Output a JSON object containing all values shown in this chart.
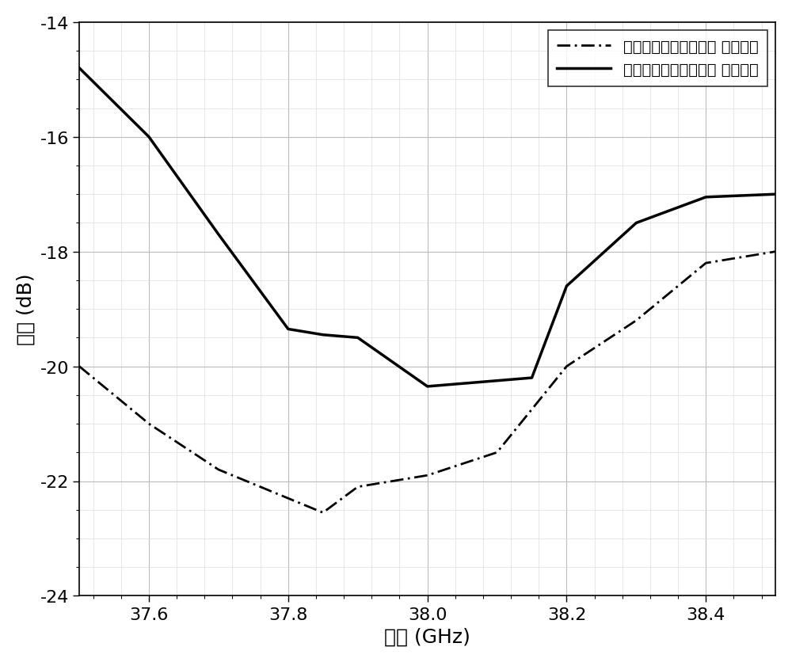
{
  "sim_x": [
    37.5,
    37.6,
    37.7,
    37.8,
    37.85,
    37.9,
    38.0,
    38.1,
    38.2,
    38.3,
    38.4,
    38.5
  ],
  "sim_y": [
    -20.0,
    -21.0,
    -21.8,
    -22.3,
    -22.55,
    -22.1,
    -21.9,
    -21.5,
    -20.0,
    -19.2,
    -18.2,
    -18.0
  ],
  "meas_x": [
    37.5,
    37.6,
    37.7,
    37.8,
    37.85,
    37.9,
    38.0,
    38.1,
    38.15,
    38.2,
    38.3,
    38.4,
    38.5
  ],
  "meas_y": [
    -14.8,
    -16.0,
    -17.7,
    -19.35,
    -19.45,
    -19.5,
    -20.35,
    -20.25,
    -20.2,
    -18.6,
    -17.5,
    -17.05,
    -17.0
  ],
  "xlabel": "频率 (GHz)",
  "ylabel": "副瓣 (dB)",
  "xlim": [
    37.5,
    38.5
  ],
  "ylim": [
    -24,
    -14
  ],
  "xticks": [
    37.6,
    37.8,
    38.0,
    38.2,
    38.4
  ],
  "yticks": [
    -24,
    -22,
    -20,
    -18,
    -16,
    -14
  ],
  "legend_sim": "中心馈电串馈微带天线 仿真结果",
  "legend_meas": "中心馈电串馈微带天线 实测结果",
  "line_color": "#000000",
  "background_color": "#ffffff",
  "major_grid_color": "#bbbbbb",
  "minor_grid_color": "#dddddd"
}
